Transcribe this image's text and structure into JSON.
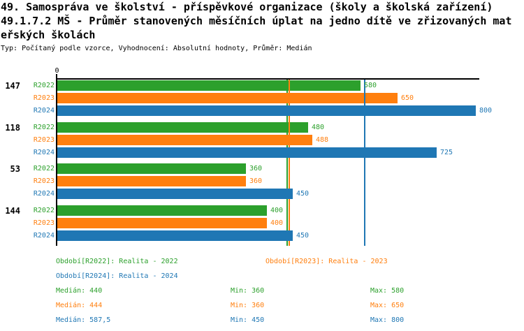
{
  "header": {
    "title_line1": "49. Samospráva ve školství - příspěvkové organizace (školy a školská zařízení)",
    "title_line2": "49.1.7.2 MŠ - Průměr stanovených měsíčních úplat na jedno dítě ve zřizovaných mat",
    "title_line3": "eřských školách",
    "meta_line": "Typ: Počítaný podle vzorce, Vyhodnocení: Absolutní hodnoty, Průměr: Medián"
  },
  "chart_data": {
    "type": "bar",
    "orientation": "horizontal",
    "title": "49.1.7.2 MŠ - Průměr stanovených měsíčních úplat na jedno dítě ve zřizovaných mateřských školách",
    "categories": [
      "147",
      "118",
      "53",
      "144"
    ],
    "series": [
      {
        "name": "R2022",
        "legend_label": "Období[R2022]: Realita - 2022",
        "color": "#2ca02c",
        "values": [
          580,
          480,
          360,
          400
        ],
        "median": 440,
        "min": 360,
        "max": 580
      },
      {
        "name": "R2023",
        "legend_label": "Období[R2023]: Realita - 2023",
        "color": "#ff7f0e",
        "values": [
          650,
          488,
          360,
          400
        ],
        "median": 444,
        "min": 360,
        "max": 650
      },
      {
        "name": "R2024",
        "legend_label": "Období[R2024]: Realita - 2024",
        "color": "#1f77b4",
        "values": [
          800,
          725,
          450,
          450
        ],
        "median": 587.5,
        "min": 450,
        "max": 800
      }
    ],
    "xlim": [
      0,
      800
    ],
    "x_axis_origin_label": "0",
    "grid": false,
    "median_lines_shown": true,
    "bar_value_labels_shown": true,
    "legend_position": "bottom"
  },
  "stats_panel": {
    "rows": [
      {
        "series": "R2022",
        "median": "Medián: 440",
        "min": "Min: 360",
        "max": "Max: 580"
      },
      {
        "series": "R2023",
        "median": "Medián: 444",
        "min": "Min: 360",
        "max": "Max: 650"
      },
      {
        "series": "R2024",
        "median": "Medián: 587,5",
        "min": "Min: 450",
        "max": "Max: 800"
      }
    ]
  }
}
